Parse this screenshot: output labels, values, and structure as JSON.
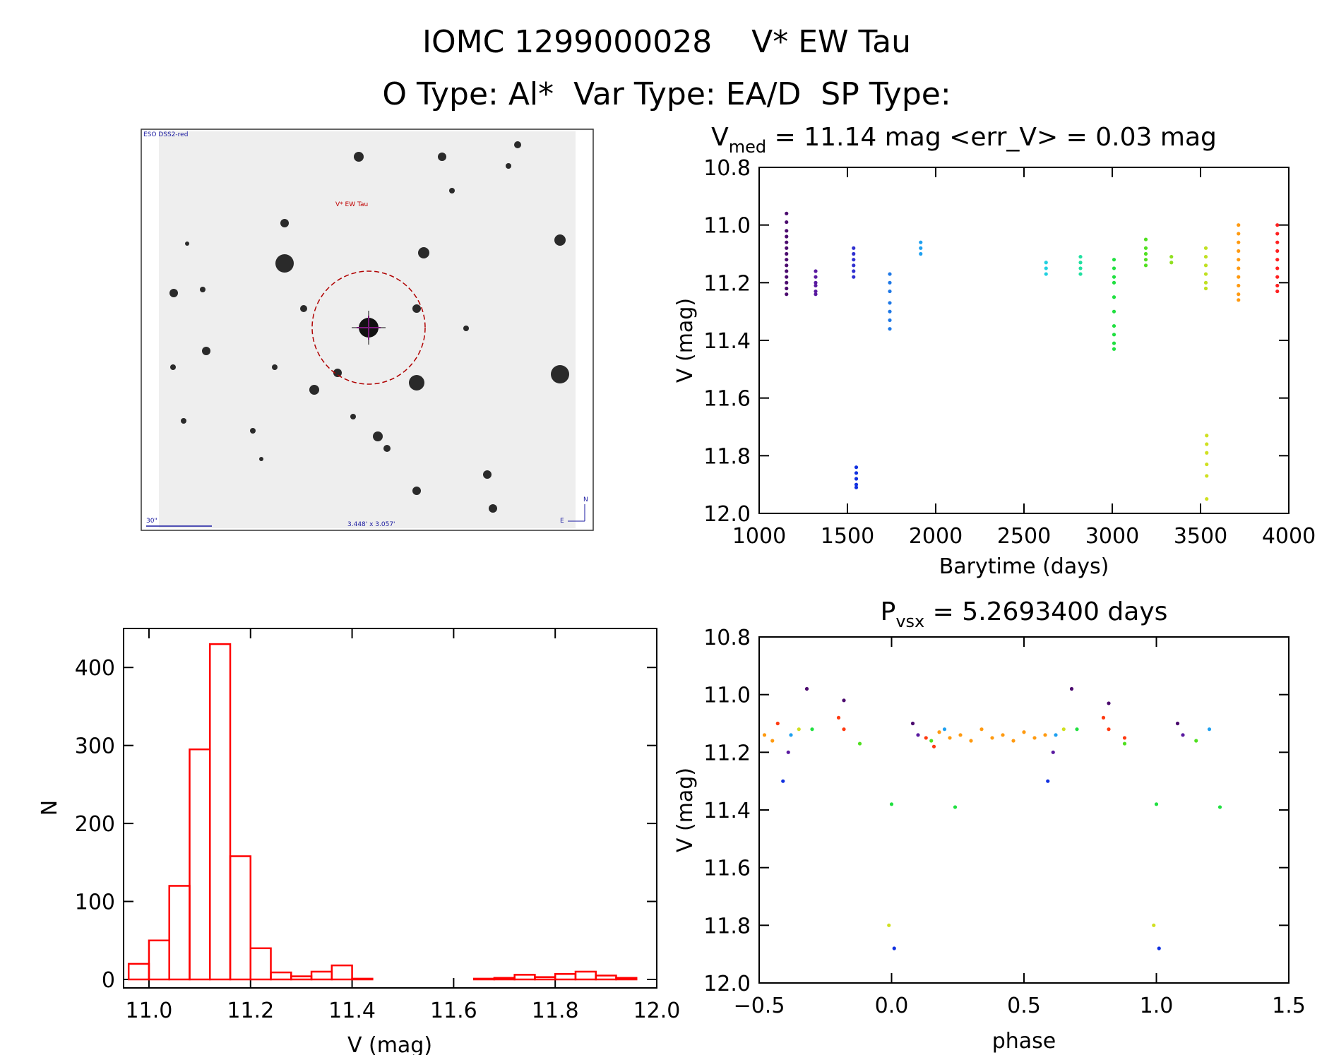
{
  "header": {
    "title_line1": "IOMC 1299000028    V* EW Tau",
    "title_line2": "O Type: Al*  Var Type: EA/D  SP Type:"
  },
  "colors": {
    "axis": "#000000",
    "histogram": "#ff0000",
    "finder_circle": "#b00000",
    "finder_marker": "#7a1a7a",
    "finder_text_blue": "#1a1aa0",
    "finder_text_red": "#c00000"
  },
  "finder": {
    "survey_label": "ESO DSS2-red",
    "target_label": "V* EW Tau",
    "scale_label": "30\"",
    "fov_label": "3.448' x 3.057'",
    "north_label": "N",
    "east_label": "E"
  },
  "chart_data": [
    {
      "id": "light_curve",
      "type": "scatter",
      "title_prefix": "V",
      "title_sub": "med",
      "title_rest": " = 11.14 mag <err_V> = 0.03 mag",
      "xlabel": "Barytime (days)",
      "ylabel": "V (mag)",
      "xlim": [
        1000,
        4000
      ],
      "ylim": [
        12.0,
        10.8
      ],
      "xticks": [
        1000,
        1500,
        2000,
        2500,
        3000,
        3500,
        4000
      ],
      "xticklabels": [
        "1000",
        "1500",
        "2000",
        "2500",
        "3000",
        "3500",
        "4000"
      ],
      "yticks": [
        10.8,
        11.0,
        11.2,
        11.4,
        11.6,
        11.8,
        12.0
      ],
      "yticklabels": [
        "10.8",
        "11.0",
        "11.2",
        "11.4",
        "11.6",
        "11.8",
        "12.0"
      ],
      "series": [
        {
          "name": "season-1",
          "color": "#4b0a6e",
          "x": 1155,
          "mags": [
            10.96,
            10.99,
            11.02,
            11.04,
            11.06,
            11.08,
            11.1,
            11.12,
            11.14,
            11.16,
            11.18,
            11.2,
            11.22,
            11.24
          ]
        },
        {
          "name": "season-2",
          "color": "#5a1aa0",
          "x": 1320,
          "mags": [
            11.16,
            11.18,
            11.2,
            11.21,
            11.23,
            11.24
          ]
        },
        {
          "name": "season-3a",
          "color": "#3030d0",
          "x": 1535,
          "mags": [
            11.08,
            11.1,
            11.12,
            11.14,
            11.16,
            11.18
          ]
        },
        {
          "name": "season-3b",
          "color": "#1030e0",
          "x": 1550,
          "mags": [
            11.84,
            11.86,
            11.88,
            11.9,
            11.91
          ]
        },
        {
          "name": "season-4",
          "color": "#1e78e6",
          "x": 1740,
          "mags": [
            11.17,
            11.2,
            11.23,
            11.27,
            11.3,
            11.33,
            11.36
          ]
        },
        {
          "name": "season-5",
          "color": "#1ea0f0",
          "x": 1915,
          "mags": [
            11.06,
            11.08,
            11.1
          ]
        },
        {
          "name": "season-6",
          "color": "#20d0e0",
          "x": 2625,
          "mags": [
            11.13,
            11.15,
            11.17
          ]
        },
        {
          "name": "season-7",
          "color": "#20e0a0",
          "x": 2820,
          "mags": [
            11.11,
            11.13,
            11.15,
            11.17
          ]
        },
        {
          "name": "season-8",
          "color": "#20e040",
          "x": 3010,
          "mags": [
            11.12,
            11.15,
            11.18,
            11.2,
            11.25,
            11.3,
            11.35,
            11.38,
            11.41,
            11.43
          ]
        },
        {
          "name": "season-9",
          "color": "#50e020",
          "x": 3190,
          "mags": [
            11.05,
            11.08,
            11.1,
            11.12,
            11.14
          ]
        },
        {
          "name": "season-10",
          "color": "#90e020",
          "x": 3335,
          "mags": [
            11.11,
            11.13
          ]
        },
        {
          "name": "season-11a",
          "color": "#c0e020",
          "x": 3530,
          "mags": [
            11.08,
            11.11,
            11.14,
            11.17,
            11.2,
            11.22
          ]
        },
        {
          "name": "season-11b",
          "color": "#d0e020",
          "x": 3535,
          "mags": [
            11.73,
            11.76,
            11.79,
            11.83,
            11.87,
            11.95
          ]
        },
        {
          "name": "season-12",
          "color": "#ff9a10",
          "x": 3715,
          "mags": [
            11.0,
            11.03,
            11.06,
            11.09,
            11.12,
            11.15,
            11.18,
            11.21,
            11.24,
            11.26
          ]
        },
        {
          "name": "season-13",
          "color": "#ff2020",
          "x": 3935,
          "mags": [
            11.0,
            11.03,
            11.06,
            11.09,
            11.12,
            11.15,
            11.18,
            11.21,
            11.23
          ]
        }
      ]
    },
    {
      "id": "histogram",
      "type": "bar",
      "xlabel": "V (mag)",
      "ylabel": "N",
      "xlim": [
        10.95,
        12.0
      ],
      "ylim": [
        0,
        450
      ],
      "bin_edges": [
        10.96,
        11.0,
        11.04,
        11.08,
        11.12,
        11.16,
        11.2,
        11.24,
        11.28,
        11.32,
        11.36,
        11.4,
        11.44,
        11.48,
        11.52,
        11.56,
        11.6,
        11.64,
        11.68,
        11.72,
        11.76,
        11.8,
        11.84,
        11.88,
        11.92,
        11.96
      ],
      "counts": [
        20,
        50,
        120,
        295,
        430,
        158,
        40,
        9,
        4,
        10,
        18,
        1,
        0,
        0,
        0,
        0,
        0,
        1,
        2,
        6,
        3,
        7,
        10,
        5,
        2
      ],
      "xticks": [
        11.0,
        11.2,
        11.4,
        11.6,
        11.8,
        12.0
      ],
      "xticklabels": [
        "11.0",
        "11.2",
        "11.4",
        "11.6",
        "11.8",
        "12.0"
      ],
      "yticks": [
        0,
        100,
        200,
        300,
        400
      ],
      "yticklabels": [
        "0",
        "100",
        "200",
        "300",
        "400"
      ]
    },
    {
      "id": "phase_curve",
      "type": "scatter",
      "title_prefix": "P",
      "title_sub": "vsx",
      "title_rest": " = 5.2693400 days",
      "xlabel": "phase",
      "ylabel": "V (mag)",
      "xlim": [
        -0.5,
        1.5
      ],
      "ylim": [
        12.0,
        10.8
      ],
      "xticks": [
        -0.5,
        0.0,
        0.5,
        1.0,
        1.5
      ],
      "xticklabels": [
        "−0.5",
        "0.0",
        "0.5",
        "1.0",
        "1.5"
      ],
      "yticks": [
        10.8,
        11.0,
        11.2,
        11.4,
        11.6,
        11.8,
        12.0
      ],
      "yticklabels": [
        "10.8",
        "11.0",
        "11.2",
        "11.4",
        "11.6",
        "11.8",
        "12.0"
      ],
      "series": [
        {
          "name": "season-12",
          "color": "#ff9a10",
          "phases": [
            -0.48,
            -0.45,
            0.18,
            0.22,
            0.26,
            0.3,
            0.34,
            0.38,
            0.42,
            0.46,
            0.5,
            0.54,
            0.58
          ],
          "mags": [
            11.14,
            11.16,
            11.13,
            11.15,
            11.14,
            11.16,
            11.12,
            11.15,
            11.14,
            11.16,
            11.13,
            11.15,
            11.14
          ]
        },
        {
          "name": "season-13",
          "color": "#ff3a10",
          "phases": [
            -0.43,
            -0.2,
            -0.18,
            0.13,
            0.16,
            0.8,
            0.82,
            0.88
          ],
          "mags": [
            11.1,
            11.08,
            11.12,
            11.15,
            11.18,
            11.08,
            11.12,
            11.15
          ]
        },
        {
          "name": "season-1",
          "color": "#4b0a6e",
          "phases": [
            -0.32,
            -0.18,
            0.08,
            0.68,
            0.82,
            1.08
          ],
          "mags": [
            10.98,
            11.02,
            11.1,
            10.98,
            11.03,
            11.1
          ]
        },
        {
          "name": "season-2",
          "color": "#5a1aa0",
          "phases": [
            -0.39,
            0.1,
            0.61,
            1.1
          ],
          "mags": [
            11.2,
            11.14,
            11.2,
            11.14
          ]
        },
        {
          "name": "season-3",
          "color": "#1030e0",
          "phases": [
            -0.41,
            0.01,
            0.59,
            1.01
          ],
          "mags": [
            11.3,
            11.88,
            11.3,
            11.88
          ]
        },
        {
          "name": "season-4",
          "color": "#1ea0f0",
          "phases": [
            -0.38,
            0.2,
            0.62,
            1.2
          ],
          "mags": [
            11.14,
            11.12,
            11.14,
            11.12
          ]
        },
        {
          "name": "season-8",
          "color": "#20e040",
          "phases": [
            -0.3,
            0.0,
            0.24,
            0.7,
            1.0,
            1.24
          ],
          "mags": [
            11.12,
            11.38,
            11.39,
            11.12,
            11.38,
            11.39
          ]
        },
        {
          "name": "season-9",
          "color": "#50e020",
          "phases": [
            -0.12,
            0.15,
            0.88,
            1.15
          ],
          "mags": [
            11.17,
            11.16,
            11.17,
            11.16
          ]
        },
        {
          "name": "season-11",
          "color": "#d0e020",
          "phases": [
            -0.35,
            -0.01,
            0.65,
            0.99
          ],
          "mags": [
            11.12,
            11.8,
            11.12,
            11.8
          ]
        }
      ]
    }
  ]
}
